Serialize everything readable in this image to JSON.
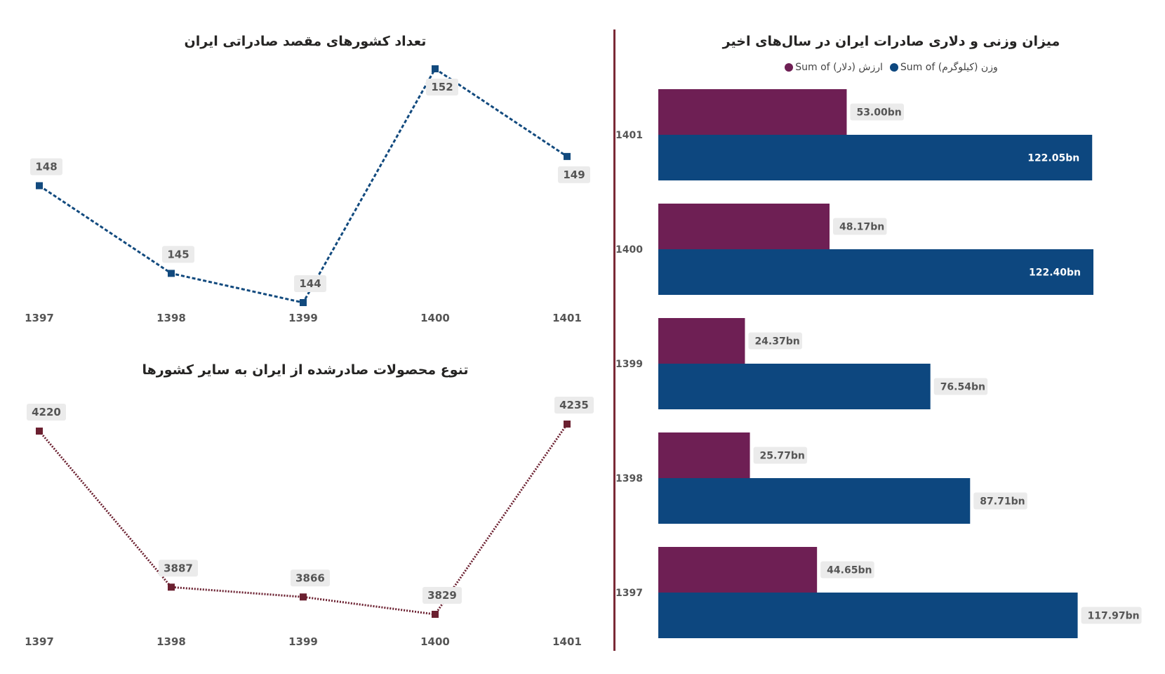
{
  "chart_data": [
    {
      "type": "line",
      "title": "تعداد کشورهای مقصد صادراتی ایران",
      "categories": [
        "1397",
        "1398",
        "1399",
        "1400",
        "1401"
      ],
      "values": [
        148,
        145,
        144,
        152,
        149
      ],
      "ylim": [
        144,
        152
      ],
      "line_color": "#124a7e",
      "line_style": "dashed",
      "grid": false
    },
    {
      "type": "line",
      "title": "تنوع محصولات صادرشده از ایران به سایر کشورها",
      "categories": [
        "1397",
        "1398",
        "1399",
        "1400",
        "1401"
      ],
      "values": [
        4220,
        3887,
        3866,
        3829,
        4235
      ],
      "ylim": [
        3829,
        4235
      ],
      "line_color": "#6b2030",
      "line_style": "dotted",
      "grid": false
    },
    {
      "type": "bar",
      "orientation": "horizontal",
      "title": "میزان وزنی و دلاری صادرات ایران در سال‌های اخیر",
      "categories": [
        "1401",
        "1400",
        "1399",
        "1398",
        "1397"
      ],
      "legend_position": "top",
      "series": [
        {
          "name": "Sum of ارزش (دلار)",
          "color": "#6e1f54",
          "values": [
            53.0,
            48.17,
            24.37,
            25.77,
            44.65
          ],
          "labels": [
            "53.00bn",
            "48.17bn",
            "24.37bn",
            "25.77bn",
            "44.65bn"
          ]
        },
        {
          "name": "Sum of وزن (کیلوگرم)",
          "color": "#0d477f",
          "values": [
            122.05,
            122.4,
            76.54,
            87.71,
            117.97
          ],
          "labels": [
            "122.05bn",
            "122.40bn",
            "76.54bn",
            "87.71bn",
            "117.97bn"
          ]
        }
      ],
      "xlim": [
        0,
        122.4
      ],
      "grid": false
    }
  ]
}
